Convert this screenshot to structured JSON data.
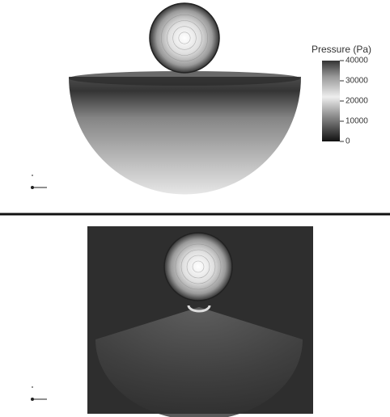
{
  "colorbar": {
    "title": "Pressure (Pa)",
    "range": [
      0,
      40000
    ],
    "ticks": [
      0,
      10000,
      20000,
      30000,
      40000
    ]
  }
}
